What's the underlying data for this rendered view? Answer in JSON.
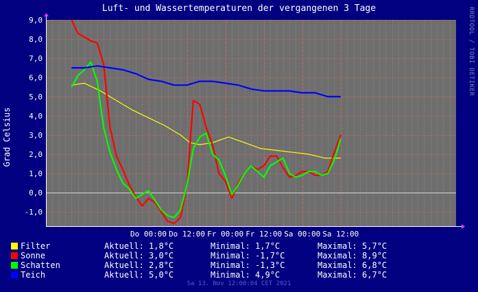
{
  "title": "Luft- und Wassertemperaturen der vergangenen 3 Tage",
  "credit": "RRDTOOL / TOBI OETIKER",
  "footer": "Sa 13. Nov 12:00:04 CET 2021",
  "colors": {
    "background": "#000080",
    "plot_area": "#6e6e6e",
    "grid": "#b4a49a",
    "axis": "#ffffff",
    "zero_line": "#d8d8d8"
  },
  "chart_data": {
    "type": "line",
    "title": "Luft- und Wassertemperaturen der vergangenen 3 Tage",
    "ylabel": "Grad Celsius",
    "xlabel": "",
    "ylim": [
      -1.75,
      9.0
    ],
    "xlim": [
      -32,
      96
    ],
    "x_unit": "hours relative to Do 00:00",
    "ytick_labels": [
      "-1,0",
      "0,0",
      "1,0",
      "2,0",
      "3,0",
      "4,0",
      "5,0",
      "6,0",
      "7,0",
      "8,0",
      "9,0"
    ],
    "yticks": [
      -1,
      0,
      1,
      2,
      3,
      4,
      5,
      6,
      7,
      8,
      9
    ],
    "xtick_labels": [
      "Do 00:00",
      "Do 12:00",
      "Fr 00:00",
      "Fr 12:00",
      "Sa 00:00",
      "Sa 12:00"
    ],
    "xticks": [
      0,
      12,
      24,
      36,
      48,
      60
    ],
    "grid": true,
    "legend_position": "bottom",
    "series": [
      {
        "name": "Filter",
        "color": "#ffff00",
        "x": [
          -24,
          -20,
          -15,
          -10,
          -5,
          0,
          5,
          10,
          13,
          16,
          20,
          25,
          30,
          35,
          40,
          45,
          50,
          55,
          60
        ],
        "y": [
          5.6,
          5.7,
          5.3,
          4.8,
          4.3,
          3.9,
          3.5,
          3.0,
          2.6,
          2.5,
          2.6,
          2.9,
          2.6,
          2.3,
          2.2,
          2.1,
          2.0,
          1.8,
          1.8
        ]
      },
      {
        "name": "Sonne",
        "color": "#ff0000",
        "x": [
          -24,
          -22,
          -20,
          -18,
          -16,
          -14,
          -12,
          -10,
          -8,
          -6,
          -4,
          -2,
          0,
          2,
          4,
          6,
          8,
          10,
          12,
          14,
          16,
          18,
          20,
          22,
          24,
          26,
          28,
          30,
          32,
          34,
          36,
          38,
          40,
          42,
          44,
          46,
          48,
          50,
          52,
          54,
          56,
          58,
          60
        ],
        "y": [
          9.0,
          8.3,
          8.1,
          7.9,
          7.8,
          6.7,
          3.4,
          1.9,
          1.2,
          0.4,
          -0.2,
          -0.7,
          -0.3,
          -0.5,
          -1.0,
          -1.5,
          -1.6,
          -1.3,
          0.4,
          4.8,
          4.6,
          3.4,
          2.5,
          1.0,
          0.6,
          -0.3,
          0.5,
          1.0,
          1.4,
          1.2,
          1.4,
          1.9,
          1.9,
          1.3,
          0.8,
          0.9,
          1.1,
          1.1,
          0.9,
          0.9,
          1.1,
          2.1,
          3.0
        ]
      },
      {
        "name": "Schatten",
        "color": "#00ff00",
        "x": [
          -24,
          -22,
          -20,
          -18,
          -16,
          -14,
          -12,
          -10,
          -8,
          -6,
          -4,
          -2,
          0,
          2,
          4,
          6,
          8,
          10,
          12,
          14,
          16,
          18,
          20,
          22,
          24,
          26,
          28,
          30,
          32,
          34,
          36,
          38,
          40,
          42,
          44,
          46,
          48,
          50,
          52,
          54,
          56,
          58,
          60
        ],
        "y": [
          5.5,
          6.1,
          6.4,
          6.8,
          5.8,
          3.4,
          2.1,
          1.2,
          0.5,
          0.2,
          -0.3,
          -0.1,
          0.1,
          -0.4,
          -0.9,
          -1.2,
          -1.3,
          -0.9,
          0.4,
          2.3,
          2.9,
          3.1,
          2.0,
          1.7,
          0.9,
          -0.1,
          0.4,
          1.0,
          1.4,
          1.1,
          0.8,
          1.4,
          1.6,
          1.8,
          1.0,
          0.8,
          0.9,
          1.1,
          1.1,
          0.9,
          1.0,
          1.7,
          2.8
        ]
      },
      {
        "name": "Teich",
        "color": "#0000ff",
        "x": [
          -24,
          -20,
          -16,
          -12,
          -8,
          -4,
          0,
          4,
          8,
          12,
          16,
          20,
          24,
          28,
          32,
          36,
          40,
          44,
          48,
          52,
          56,
          60
        ],
        "y": [
          6.5,
          6.5,
          6.6,
          6.5,
          6.4,
          6.2,
          5.9,
          5.8,
          5.6,
          5.6,
          5.8,
          5.8,
          5.7,
          5.6,
          5.4,
          5.3,
          5.3,
          5.3,
          5.2,
          5.2,
          5.0,
          5.0
        ]
      }
    ]
  },
  "legend": [
    {
      "name": "Filter",
      "color": "#ffff00",
      "current": "Aktuell: 1,8°C",
      "min": "Minimal: 1,7°C",
      "max": "Maximal: 5,7°C"
    },
    {
      "name": "Sonne",
      "color": "#ff0000",
      "current": "Aktuell: 3,0°C",
      "min": "Minimal: -1,7°C",
      "max": " Maximal: 8,9°C"
    },
    {
      "name": "Schatten",
      "color": "#00ff00",
      "current": "Aktuell: 2,8°C",
      "min": "Minimal: -1,3°C",
      "max": " Maximal: 6,8°C"
    },
    {
      "name": "Teich",
      "color": "#0000ff",
      "current": "Aktuell: 5,0°C",
      "min": "Minimal: 4,9°C",
      "max": "Maximal: 6,7°C"
    }
  ]
}
